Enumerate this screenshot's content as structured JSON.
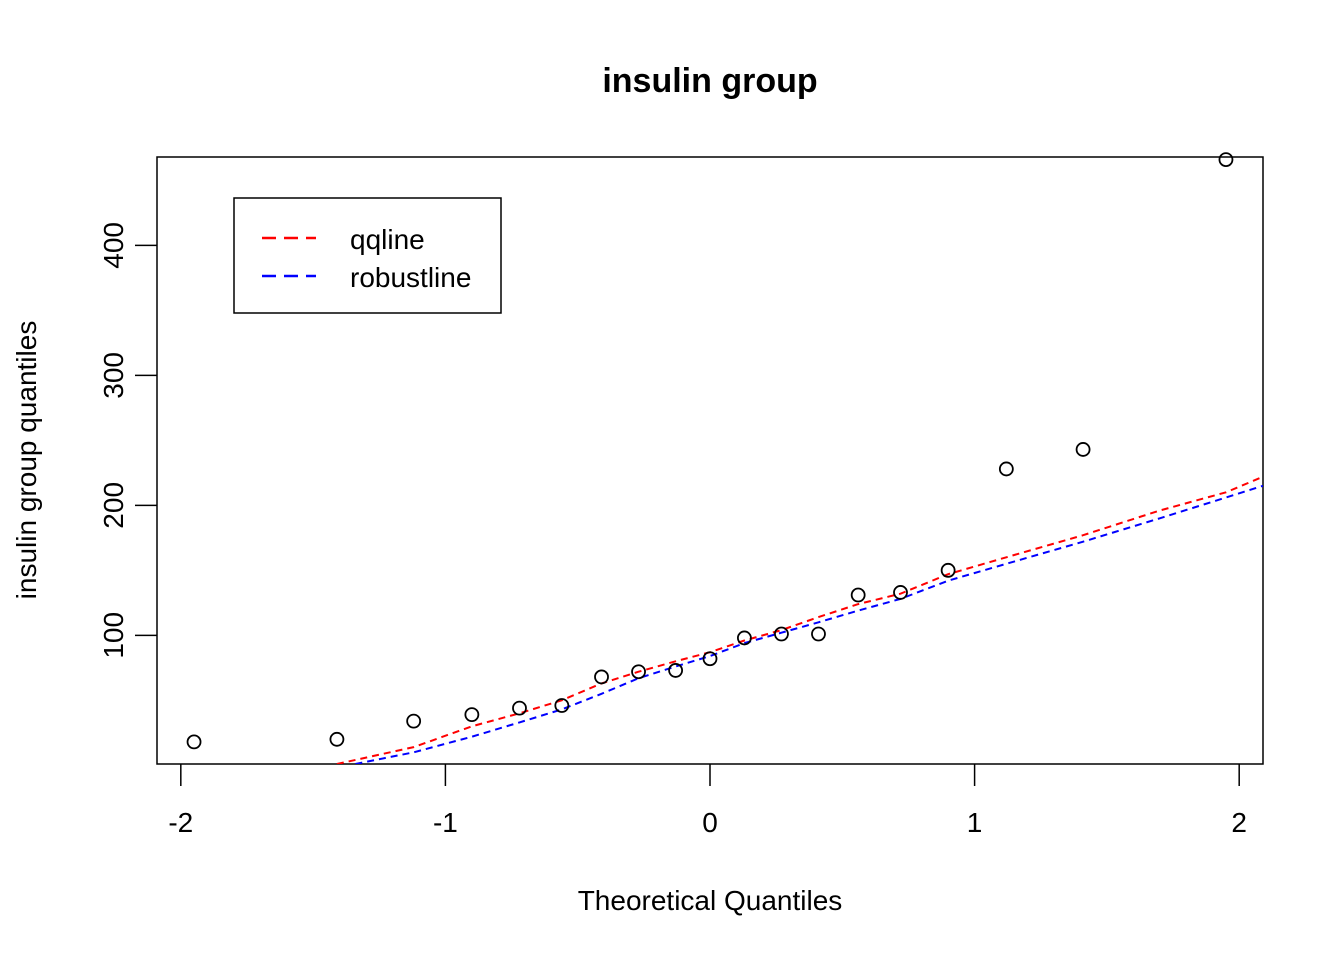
{
  "chart_data": {
    "type": "scatter",
    "title": "insulin group",
    "xlabel": "Theoretical Quantiles",
    "ylabel": "insulin group quantiles",
    "xlim": [
      -2.09,
      2.09
    ],
    "ylim": [
      1,
      468
    ],
    "x_ticks": [
      -2,
      -1,
      0,
      1,
      2
    ],
    "x_tick_labels": [
      "-2",
      "-1",
      "0",
      "1",
      "2"
    ],
    "y_ticks": [
      100,
      200,
      300,
      400
    ],
    "y_tick_labels": [
      "100",
      "200",
      "300",
      "400"
    ],
    "grid": false,
    "legend_position": "top-left",
    "series": [
      {
        "name": "",
        "kind": "points",
        "marker": "open-circle",
        "color": "#000000",
        "x": [
          -1.95,
          -1.41,
          -1.12,
          -0.9,
          -0.72,
          -0.56,
          -0.41,
          -0.27,
          -0.13,
          0.0,
          0.13,
          0.27,
          0.41,
          0.56,
          0.72,
          0.9,
          1.12,
          1.41,
          1.95
        ],
        "y": [
          18,
          20,
          34,
          39,
          44,
          46,
          68,
          72,
          73,
          82,
          98,
          101,
          101,
          131,
          133,
          150,
          228,
          243,
          466
        ]
      },
      {
        "name": "qqline",
        "kind": "dashed-line",
        "color": "#ff0000",
        "x": [
          -1.41,
          -1.12,
          -0.9,
          -0.72,
          -0.56,
          -0.41,
          -0.27,
          -0.13,
          0.0,
          0.13,
          0.27,
          0.41,
          0.56,
          0.72,
          0.9,
          1.12,
          1.41,
          1.7,
          1.95,
          2.09
        ],
        "y": [
          1,
          14,
          30,
          40,
          50,
          63,
          72,
          80,
          87,
          96,
          104,
          114,
          124,
          132,
          147,
          160,
          177,
          196,
          210,
          222
        ]
      },
      {
        "name": "robustline",
        "kind": "dashed-line",
        "color": "#0000ff",
        "x": [
          -1.34,
          -1.12,
          -0.9,
          -0.72,
          -0.56,
          -0.41,
          -0.27,
          -0.13,
          0.0,
          0.13,
          0.27,
          0.41,
          0.56,
          0.72,
          0.9,
          1.12,
          1.41,
          1.7,
          1.95,
          2.09
        ],
        "y": [
          1,
          10,
          22,
          33,
          43,
          55,
          67,
          76,
          84,
          94,
          102,
          110,
          119,
          128,
          142,
          155,
          172,
          190,
          206,
          215
        ]
      }
    ],
    "legend": [
      {
        "label": "qqline",
        "color": "#ff0000"
      },
      {
        "label": "robustline",
        "color": "#0000ff"
      }
    ]
  }
}
